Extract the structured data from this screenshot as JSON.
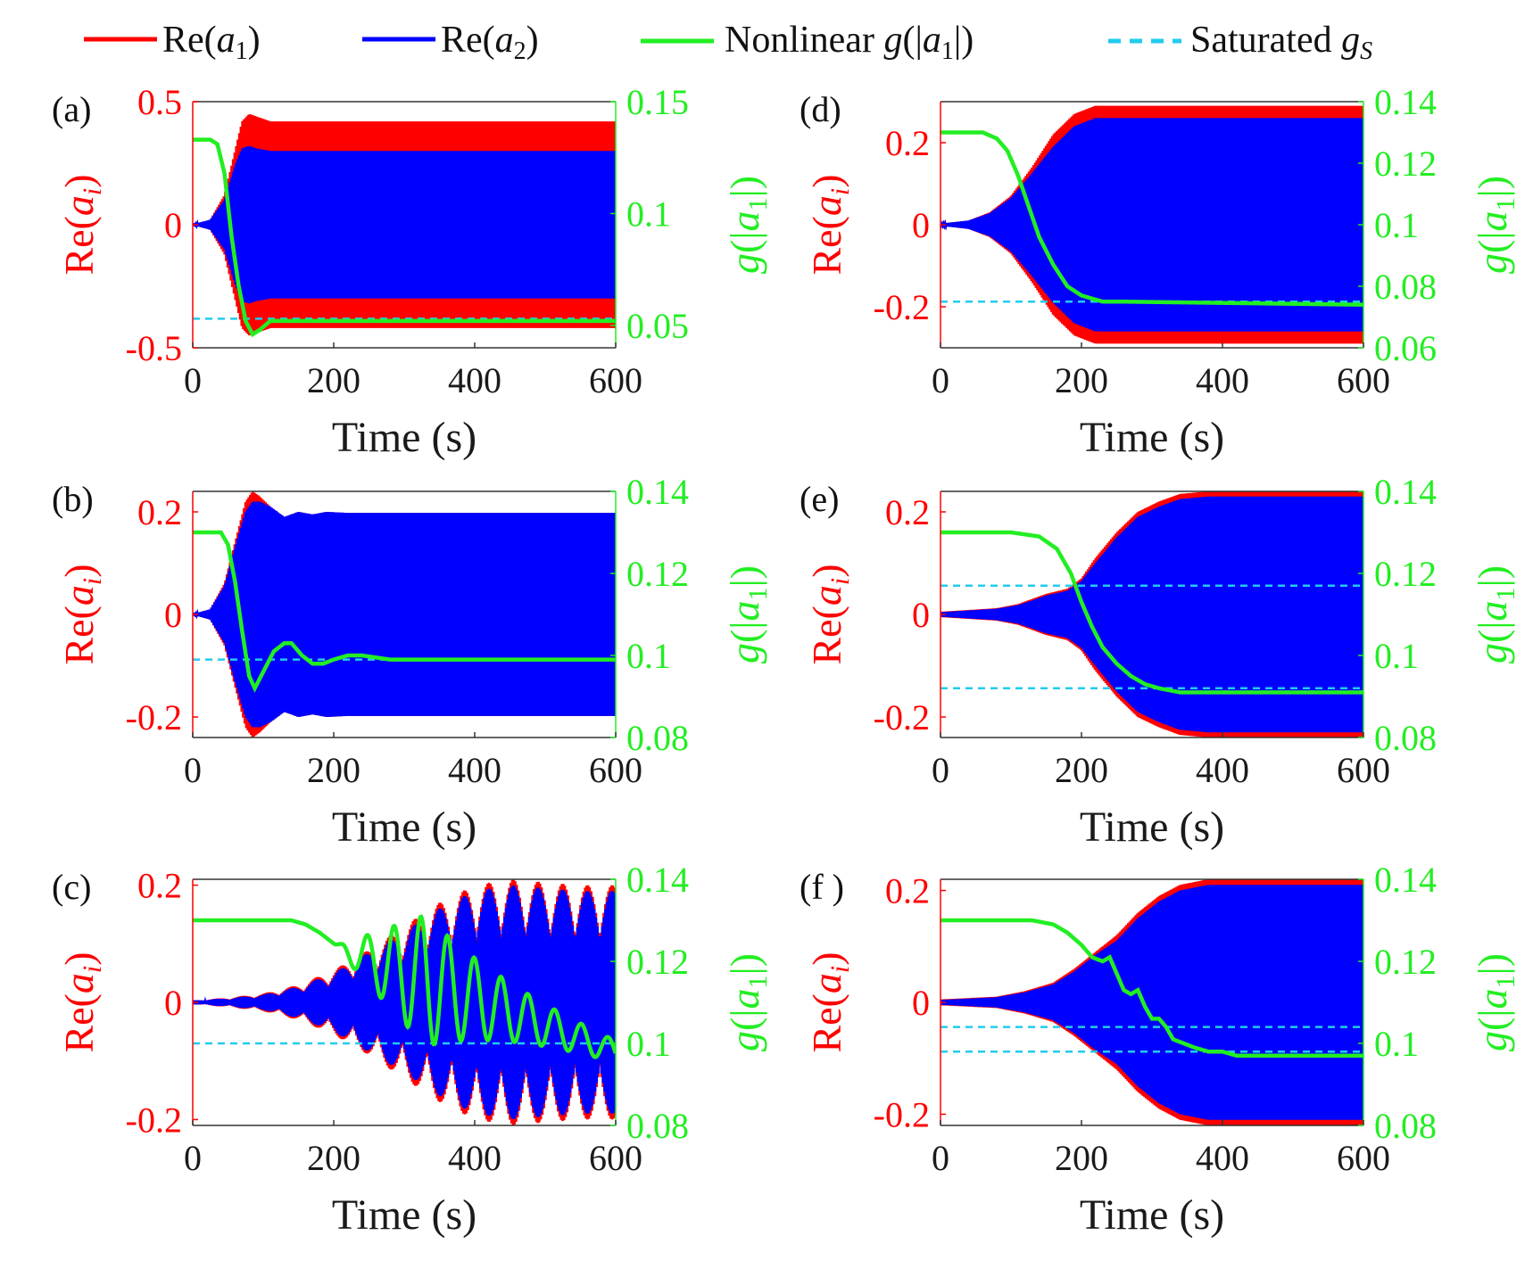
{
  "legend": {
    "re_a1": {
      "prefix": "Re(",
      "var": "a",
      "sub": "1",
      "suffix": ")"
    },
    "re_a2": {
      "prefix": "Re(",
      "var": "a",
      "sub": "2",
      "suffix": ")"
    },
    "nonlinear": {
      "prefix": "Nonlinear ",
      "var": "g",
      "mid": "(|",
      "var2": "a",
      "sub": "1",
      "suffix": "|)"
    },
    "saturated": {
      "prefix": "Saturated ",
      "var": "g",
      "sub": "S"
    }
  },
  "colors": {
    "a1": "#ff0000",
    "a2": "#0000ff",
    "g": "#22ee22",
    "gs": "#22ccee",
    "tick_left": "#ff0000",
    "tick_right": "#22ee22"
  },
  "axis_titles": {
    "left": {
      "prefix": "Re(",
      "var": "a",
      "sub": "i",
      "suffix": ")"
    },
    "right": {
      "var": "g",
      "mid": "(|",
      "var2": "a",
      "sub": "1",
      "suffix": "|)"
    }
  },
  "chart_data": [
    {
      "panel": "(a)",
      "type": "line",
      "xlabel": "Time (s)",
      "xlim": [
        0,
        600
      ],
      "xticks": [
        "0",
        "200",
        "400",
        "600"
      ],
      "left_ylim": [
        -0.5,
        0.5
      ],
      "left_ticks": [
        {
          "v": 0.5,
          "t": "0.5"
        },
        {
          "v": 0,
          "t": "0"
        },
        {
          "v": -0.5,
          "t": "-0.5"
        }
      ],
      "right_ylim": [
        0.04,
        0.15
      ],
      "right_ticks": [
        {
          "v": 0.15,
          "t": "0.15"
        },
        {
          "v": 0.1,
          "t": "0.1"
        },
        {
          "v": 0.05,
          "t": "0.05"
        }
      ],
      "a1_envelope": {
        "t": [
          0,
          25,
          45,
          60,
          70,
          80,
          90,
          110,
          140,
          600
        ],
        "amp": [
          0,
          0.02,
          0.12,
          0.3,
          0.42,
          0.45,
          0.44,
          0.42,
          0.42,
          0.42
        ]
      },
      "a2_envelope": {
        "t": [
          0,
          25,
          45,
          60,
          70,
          80,
          90,
          110,
          140,
          600
        ],
        "amp": [
          0,
          0.02,
          0.1,
          0.24,
          0.31,
          0.32,
          0.31,
          0.3,
          0.3,
          0.3
        ]
      },
      "g": {
        "t": [
          0,
          25,
          35,
          45,
          55,
          65,
          75,
          85,
          95,
          110,
          150,
          600
        ],
        "v": [
          0.133,
          0.133,
          0.131,
          0.118,
          0.09,
          0.068,
          0.052,
          0.046,
          0.048,
          0.052,
          0.052,
          0.052
        ]
      },
      "gs": [
        0.053
      ]
    },
    {
      "panel": "(b)",
      "type": "line",
      "xlabel": "Time (s)",
      "xlim": [
        0,
        600
      ],
      "xticks": [
        "0",
        "200",
        "400",
        "600"
      ],
      "left_ylim": [
        -0.24,
        0.24
      ],
      "left_ticks": [
        {
          "v": 0.2,
          "t": "0.2"
        },
        {
          "v": 0,
          "t": "0"
        },
        {
          "v": -0.2,
          "t": "-0.2"
        }
      ],
      "right_ylim": [
        0.08,
        0.14
      ],
      "right_ticks": [
        {
          "v": 0.14,
          "t": "0.14"
        },
        {
          "v": 0.12,
          "t": "0.12"
        },
        {
          "v": 0.1,
          "t": "0.1"
        },
        {
          "v": 0.08,
          "t": "0.08"
        }
      ],
      "a1_envelope": {
        "t": [
          0,
          25,
          45,
          60,
          75,
          85,
          95,
          110,
          130,
          150,
          170,
          190,
          220,
          600
        ],
        "amp": [
          0,
          0.01,
          0.06,
          0.14,
          0.22,
          0.24,
          0.23,
          0.21,
          0.19,
          0.2,
          0.195,
          0.2,
          0.198,
          0.198
        ]
      },
      "a2_envelope": {
        "t": [
          0,
          25,
          45,
          60,
          75,
          85,
          95,
          110,
          130,
          150,
          170,
          190,
          220,
          600
        ],
        "amp": [
          0,
          0.01,
          0.055,
          0.13,
          0.2,
          0.22,
          0.22,
          0.21,
          0.19,
          0.2,
          0.195,
          0.2,
          0.198,
          0.198
        ]
      },
      "g": {
        "t": [
          0,
          40,
          50,
          60,
          70,
          80,
          88,
          100,
          115,
          130,
          140,
          155,
          170,
          185,
          200,
          220,
          240,
          280,
          600
        ],
        "v": [
          0.13,
          0.13,
          0.127,
          0.118,
          0.106,
          0.095,
          0.092,
          0.096,
          0.101,
          0.103,
          0.103,
          0.1,
          0.098,
          0.098,
          0.099,
          0.1,
          0.1,
          0.099,
          0.099
        ]
      },
      "gs": [
        0.099
      ]
    },
    {
      "panel": "(c)",
      "type": "line",
      "xlabel": "Time (s)",
      "xlim": [
        0,
        600
      ],
      "xticks": [
        "0",
        "200",
        "400",
        "600"
      ],
      "left_ylim": [
        -0.21,
        0.21
      ],
      "left_ticks": [
        {
          "v": 0.2,
          "t": "0.2"
        },
        {
          "v": 0,
          "t": "0"
        },
        {
          "v": -0.2,
          "t": "-0.2"
        }
      ],
      "right_ylim": [
        0.08,
        0.14
      ],
      "right_ticks": [
        {
          "v": 0.14,
          "t": "0.14"
        },
        {
          "v": 0.12,
          "t": "0.12"
        },
        {
          "v": 0.1,
          "t": "0.1"
        },
        {
          "v": 0.08,
          "t": "0.08"
        }
      ],
      "a1_envelope": {
        "t": [
          0,
          50,
          100,
          150,
          200,
          250,
          300,
          350,
          400,
          450,
          500,
          550,
          600
        ],
        "amp": [
          0.003,
          0.008,
          0.015,
          0.03,
          0.055,
          0.09,
          0.13,
          0.17,
          0.2,
          0.21,
          0.205,
          0.2,
          0.2
        ]
      },
      "a2_envelope": {
        "t": [
          0,
          50,
          100,
          150,
          200,
          250,
          300,
          350,
          400,
          450,
          500,
          550,
          600
        ],
        "amp": [
          0.003,
          0.007,
          0.013,
          0.027,
          0.05,
          0.085,
          0.12,
          0.16,
          0.19,
          0.2,
          0.195,
          0.19,
          0.19
        ]
      },
      "a_mod_period": 35,
      "g": {
        "t": [
          0,
          140,
          160,
          180,
          195,
          210,
          225,
          600
        ],
        "v": [
          0.13,
          0.13,
          0.129,
          0.127,
          0.125,
          0.123,
          0.122,
          0.098
        ]
      },
      "g_osc": {
        "period": 38,
        "amp_peak": 0.016,
        "peak_t": 330,
        "start_t": 200
      },
      "gs": [
        0.1
      ]
    },
    {
      "panel": "(d)",
      "type": "line",
      "xlabel": "Time (s)",
      "xlim": [
        0,
        600
      ],
      "xticks": [
        "0",
        "200",
        "400",
        "600"
      ],
      "left_ylim": [
        -0.3,
        0.3
      ],
      "left_ticks": [
        {
          "v": 0.2,
          "t": "0.2"
        },
        {
          "v": 0,
          "t": "0"
        },
        {
          "v": -0.2,
          "t": "-0.2"
        }
      ],
      "right_ylim": [
        0.06,
        0.14
      ],
      "right_ticks": [
        {
          "v": 0.14,
          "t": "0.14"
        },
        {
          "v": 0.12,
          "t": "0.12"
        },
        {
          "v": 0.1,
          "t": "0.1"
        },
        {
          "v": 0.08,
          "t": "0.08"
        },
        {
          "v": 0.06,
          "t": "0.06"
        }
      ],
      "a1_envelope": {
        "t": [
          0,
          40,
          70,
          100,
          130,
          160,
          190,
          220,
          250,
          600
        ],
        "amp": [
          0.002,
          0.01,
          0.03,
          0.07,
          0.14,
          0.22,
          0.27,
          0.29,
          0.29,
          0.29
        ]
      },
      "a2_envelope": {
        "t": [
          0,
          40,
          70,
          100,
          130,
          160,
          190,
          220,
          250,
          600
        ],
        "amp": [
          0.002,
          0.01,
          0.028,
          0.065,
          0.125,
          0.19,
          0.24,
          0.26,
          0.26,
          0.26
        ]
      },
      "g": {
        "t": [
          0,
          60,
          80,
          95,
          110,
          125,
          140,
          160,
          180,
          200,
          230,
          260,
          600
        ],
        "v": [
          0.13,
          0.13,
          0.128,
          0.124,
          0.116,
          0.106,
          0.096,
          0.087,
          0.08,
          0.077,
          0.075,
          0.075,
          0.074
        ]
      },
      "gs": [
        0.075
      ]
    },
    {
      "panel": "(e)",
      "type": "line",
      "xlabel": "Time (s)",
      "xlim": [
        0,
        600
      ],
      "xticks": [
        "0",
        "200",
        "400",
        "600"
      ],
      "left_ylim": [
        -0.24,
        0.24
      ],
      "left_ticks": [
        {
          "v": 0.2,
          "t": "0.2"
        },
        {
          "v": 0,
          "t": "0"
        },
        {
          "v": -0.2,
          "t": "-0.2"
        }
      ],
      "right_ylim": [
        0.08,
        0.14
      ],
      "right_ticks": [
        {
          "v": 0.14,
          "t": "0.14"
        },
        {
          "v": 0.12,
          "t": "0.12"
        },
        {
          "v": 0.1,
          "t": "0.1"
        },
        {
          "v": 0.08,
          "t": "0.08"
        }
      ],
      "a1_envelope": {
        "t": [
          0,
          80,
          110,
          130,
          150,
          180,
          200,
          220,
          250,
          280,
          310,
          340,
          380,
          600
        ],
        "amp": [
          0.005,
          0.012,
          0.02,
          0.03,
          0.04,
          0.05,
          0.07,
          0.11,
          0.16,
          0.2,
          0.22,
          0.235,
          0.24,
          0.24
        ]
      },
      "a2_envelope": {
        "t": [
          0,
          80,
          110,
          130,
          150,
          180,
          200,
          220,
          250,
          280,
          310,
          340,
          380,
          600
        ],
        "amp": [
          0.004,
          0.011,
          0.018,
          0.027,
          0.037,
          0.046,
          0.065,
          0.1,
          0.15,
          0.19,
          0.21,
          0.225,
          0.23,
          0.23
        ]
      },
      "g": {
        "t": [
          0,
          100,
          140,
          165,
          185,
          200,
          215,
          230,
          250,
          270,
          290,
          310,
          340,
          600
        ],
        "v": [
          0.13,
          0.13,
          0.129,
          0.126,
          0.12,
          0.113,
          0.107,
          0.102,
          0.098,
          0.095,
          0.093,
          0.092,
          0.091,
          0.091
        ]
      },
      "gs": [
        0.117,
        0.092
      ]
    },
    {
      "panel": "(f )",
      "type": "line",
      "xlabel": "Time (s)",
      "xlim": [
        0,
        600
      ],
      "xticks": [
        "0",
        "200",
        "400",
        "600"
      ],
      "left_ylim": [
        -0.22,
        0.22
      ],
      "left_ticks": [
        {
          "v": 0.2,
          "t": "0.2"
        },
        {
          "v": 0,
          "t": "0"
        },
        {
          "v": -0.2,
          "t": "-0.2"
        }
      ],
      "right_ylim": [
        0.08,
        0.14
      ],
      "right_ticks": [
        {
          "v": 0.14,
          "t": "0.14"
        },
        {
          "v": 0.12,
          "t": "0.12"
        },
        {
          "v": 0.1,
          "t": "0.1"
        },
        {
          "v": 0.08,
          "t": "0.08"
        }
      ],
      "a1_envelope": {
        "t": [
          0,
          80,
          120,
          160,
          190,
          220,
          250,
          280,
          310,
          340,
          380,
          420,
          600
        ],
        "amp": [
          0.005,
          0.01,
          0.02,
          0.035,
          0.06,
          0.09,
          0.12,
          0.16,
          0.19,
          0.21,
          0.22,
          0.22,
          0.22
        ]
      },
      "a2_envelope": {
        "t": [
          0,
          80,
          120,
          160,
          190,
          220,
          250,
          280,
          310,
          340,
          380,
          420,
          600
        ],
        "amp": [
          0.004,
          0.009,
          0.018,
          0.032,
          0.055,
          0.085,
          0.11,
          0.15,
          0.18,
          0.2,
          0.21,
          0.21,
          0.21
        ]
      },
      "g": {
        "t": [
          0,
          130,
          160,
          180,
          200,
          215,
          230,
          240,
          250,
          260,
          270,
          280,
          290,
          300,
          310,
          320,
          330,
          345,
          360,
          380,
          400,
          420,
          600
        ],
        "v": [
          0.13,
          0.13,
          0.129,
          0.127,
          0.124,
          0.121,
          0.12,
          0.121,
          0.117,
          0.113,
          0.112,
          0.113,
          0.109,
          0.106,
          0.106,
          0.104,
          0.101,
          0.1,
          0.099,
          0.098,
          0.098,
          0.097,
          0.097
        ]
      },
      "gs": [
        0.104,
        0.098
      ]
    }
  ]
}
